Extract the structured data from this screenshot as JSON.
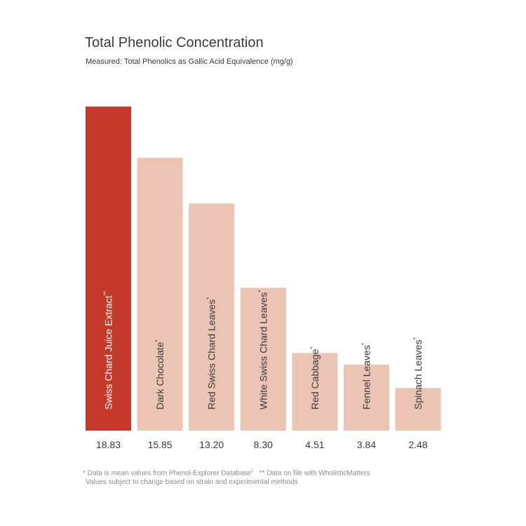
{
  "chart_data": {
    "type": "bar",
    "title": "Total Phenolic Concentration",
    "subtitle": "Measured: Total Phenolics as Gallic Acid Equivalence (mg/g)",
    "xlabel": "",
    "ylabel": "",
    "ylim": [
      0,
      18.83
    ],
    "grid": false,
    "categories": [
      "Swiss Chard Juice Extract**",
      "Dark Chocolate*",
      "Red Swiss Chard Leaves*",
      "White Swiss Chard Leaves*",
      "Red Cabbage*",
      "Fennel Leaves*",
      "Spinach Leaves*"
    ],
    "labels": [
      {
        "name": "Swiss Chard Juice Extract",
        "mark": "**"
      },
      {
        "name": "Dark Chocolate",
        "mark": "*"
      },
      {
        "name": "Red Swiss Chard Leaves",
        "mark": "*"
      },
      {
        "name": "White Swiss Chard Leaves",
        "mark": "*"
      },
      {
        "name": "Red Cabbage",
        "mark": "*"
      },
      {
        "name": "Fennel Leaves",
        "mark": "*"
      },
      {
        "name": "Spinach Leaves",
        "mark": "*"
      }
    ],
    "values": [
      18.83,
      15.85,
      13.2,
      8.3,
      4.51,
      3.84,
      2.48
    ],
    "value_labels": [
      "18.83",
      "15.85",
      "13.20",
      "8.30",
      "4.51",
      "3.84",
      "2.48"
    ],
    "highlight_index": 0,
    "colors": {
      "highlight": "#c5392b",
      "default": "#ecc4b4",
      "highlight_text": "#ffffff",
      "default_text": "#3a3a3a",
      "value_text": "#3a3a3a"
    }
  },
  "footnotes": {
    "line1_part1": "* Data is mean values from Phenol-Explorer Database",
    "line1_sup": "1",
    "line1_part2": "   ** Data on file with WholisticMatters",
    "line2": "Values subject to change based on strain and experimental methods"
  }
}
